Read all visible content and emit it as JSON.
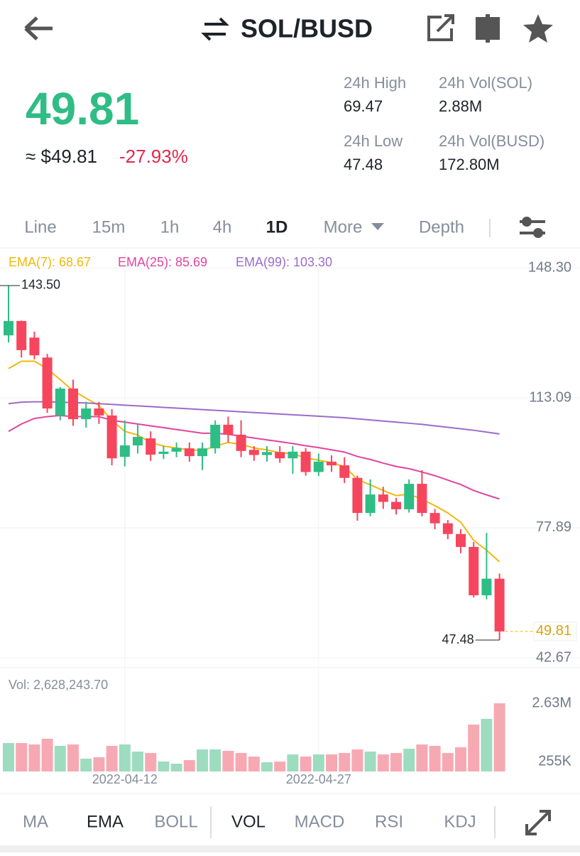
{
  "header": {
    "title": "SOL/BUSD"
  },
  "ticker": {
    "price": "49.81",
    "fiat": "≈ $49.81",
    "change": "-27.93%"
  },
  "stats": [
    {
      "label": "24h High",
      "value": "69.47"
    },
    {
      "label": "24h Vol(SOL)",
      "value": "2.88M"
    },
    {
      "label": "24h Low",
      "value": "47.48"
    },
    {
      "label": "24h Vol(BUSD)",
      "value": "172.80M"
    }
  ],
  "intervals": [
    "Line",
    "15m",
    "1h",
    "4h",
    "1D",
    "More",
    "Depth"
  ],
  "active_interval": "1D",
  "indicators": [
    "MA",
    "EMA",
    "BOLL",
    "VOL",
    "MACD",
    "RSI",
    "KDJ"
  ],
  "active_indicators": [
    "EMA",
    "VOL"
  ],
  "chart_data": [
    {
      "type": "candlestick",
      "up_color": "#2ebd85",
      "down_color": "#f6465d",
      "open": [
        130.0,
        133.9,
        129.4,
        124.0,
        108.3,
        115.6,
        107.3,
        110.2,
        108.3,
        97.1,
        100.2,
        102.1,
        97.9,
        98.5,
        99.4,
        97.3,
        99.4,
        105.8,
        103.1,
        99.0,
        97.6,
        98.4,
        96.7,
        98.5,
        93.0,
        95.8,
        94.8,
        91.4,
        81.9,
        86.9,
        84.9,
        82.9,
        89.8,
        81.9,
        79.1,
        76.2,
        72.7,
        59.6,
        64.1
      ],
      "high": [
        143.5,
        134.0,
        131.0,
        125.0,
        116.0,
        118.0,
        112.0,
        112.0,
        110.0,
        107.0,
        106.0,
        104.0,
        100.0,
        101.0,
        101.0,
        101.0,
        107.0,
        108.0,
        107.0,
        100.0,
        100.0,
        100.0,
        100.0,
        99.5,
        98.0,
        97.5,
        97.0,
        92.0,
        91.0,
        89.0,
        86.0,
        91.0,
        93.5,
        83.0,
        80.0,
        77.5,
        74.0,
        76.5,
        65.5
      ],
      "low": [
        128.1,
        124.0,
        123.5,
        109.0,
        107.0,
        105.5,
        105.0,
        106.0,
        94.8,
        94.5,
        98.0,
        96.0,
        96.5,
        97.0,
        95.8,
        93.5,
        98.0,
        101.0,
        97.0,
        96.0,
        95.8,
        95.5,
        92.5,
        92.0,
        91.9,
        93.0,
        90.0,
        79.8,
        81.0,
        83.0,
        81.5,
        82.0,
        81.0,
        77.5,
        74.8,
        71.0,
        59.0,
        58.5,
        47.48
      ],
      "close": [
        133.9,
        126.0,
        124.6,
        110.2,
        115.6,
        107.3,
        110.2,
        108.3,
        96.7,
        100.2,
        102.5,
        97.7,
        98.5,
        99.5,
        97.3,
        99.4,
        105.8,
        103.1,
        98.7,
        97.6,
        98.4,
        96.7,
        98.5,
        93.0,
        95.8,
        94.8,
        91.4,
        81.9,
        86.9,
        84.9,
        82.9,
        89.8,
        81.9,
        79.1,
        76.2,
        72.7,
        59.6,
        64.1,
        49.81
      ],
      "series": [
        {
          "name": "EMA(7): 68.67",
          "color": "#f0b90b",
          "values": [
            121,
            123,
            123,
            121,
            118,
            115,
            113,
            111,
            107,
            104,
            103,
            101,
            100,
            99.5,
            99,
            98.8,
            100,
            101,
            100.5,
            99.5,
            99,
            98.2,
            98,
            96.8,
            96.2,
            95.5,
            94.5,
            91,
            89.5,
            88,
            86.6,
            87,
            85.6,
            83.9,
            81.9,
            79.4,
            74.5,
            71.8,
            68.67
          ]
        },
        {
          "name": "EMA(25): 85.69",
          "color": "#e0459f",
          "values": [
            104,
            106,
            107.5,
            108,
            108.3,
            108,
            108,
            108,
            107,
            106.5,
            106,
            105.5,
            105,
            104.5,
            104,
            103.5,
            103.5,
            103.2,
            102.7,
            102.2,
            101.7,
            101.2,
            100.7,
            100.1,
            99.6,
            99,
            98.4,
            97.2,
            96.4,
            95.4,
            94.5,
            93.9,
            93,
            92,
            90.8,
            89.6,
            88,
            86.8,
            85.69
          ]
        },
        {
          "name": "EMA(99): 103.30",
          "color": "#9b6ccb",
          "values": [
            111.5,
            111.9,
            112,
            112,
            111.9,
            111.8,
            111.7,
            111.5,
            111.3,
            111.1,
            110.9,
            110.7,
            110.5,
            110.3,
            110.1,
            109.9,
            109.7,
            109.5,
            109.3,
            109.1,
            108.9,
            108.7,
            108.5,
            108.3,
            108.1,
            107.9,
            107.7,
            107.4,
            107.1,
            106.8,
            106.5,
            106.2,
            105.9,
            105.5,
            105.1,
            104.7,
            104.3,
            103.8,
            103.3
          ]
        }
      ],
      "ylim": [
        42.67,
        148.3
      ],
      "yticks": [
        {
          "value": 148.3,
          "label": "148.30"
        },
        113.09,
        77.89,
        42.67
      ],
      "high_label": "143.50",
      "low_label": "47.48",
      "last_label": "49.81",
      "grid": true
    },
    {
      "type": "bar",
      "title": "Vol: 2,628,243.70",
      "up_color": "#9ddcbf",
      "down_color": "#f7a9b3",
      "categories": [
        null,
        null,
        null,
        null,
        null,
        null,
        null,
        null,
        null,
        "2022-04-12",
        null,
        null,
        null,
        null,
        null,
        null,
        null,
        null,
        null,
        null,
        null,
        null,
        null,
        null,
        "2022-04-27",
        null,
        null,
        null,
        null,
        null,
        null,
        null,
        null,
        null,
        null,
        null,
        null,
        null,
        null
      ],
      "values": [
        1009000,
        1009000,
        951000,
        1183000,
        893000,
        951000,
        371000,
        429000,
        893000,
        951000,
        661000,
        603000,
        255000,
        168000,
        313000,
        748000,
        748000,
        690000,
        603000,
        458000,
        226000,
        255000,
        545000,
        458000,
        545000,
        545000,
        603000,
        748000,
        661000,
        545000,
        603000,
        777000,
        951000,
        893000,
        603000,
        835000,
        1762000,
        1994000,
        2628243.7
      ],
      "ylim": [
        -150000,
        3788000
      ],
      "yticks": [
        {
          "value": 2630000,
          "label": "2.63M"
        },
        {
          "value": 255000,
          "label": "255K"
        }
      ]
    }
  ]
}
